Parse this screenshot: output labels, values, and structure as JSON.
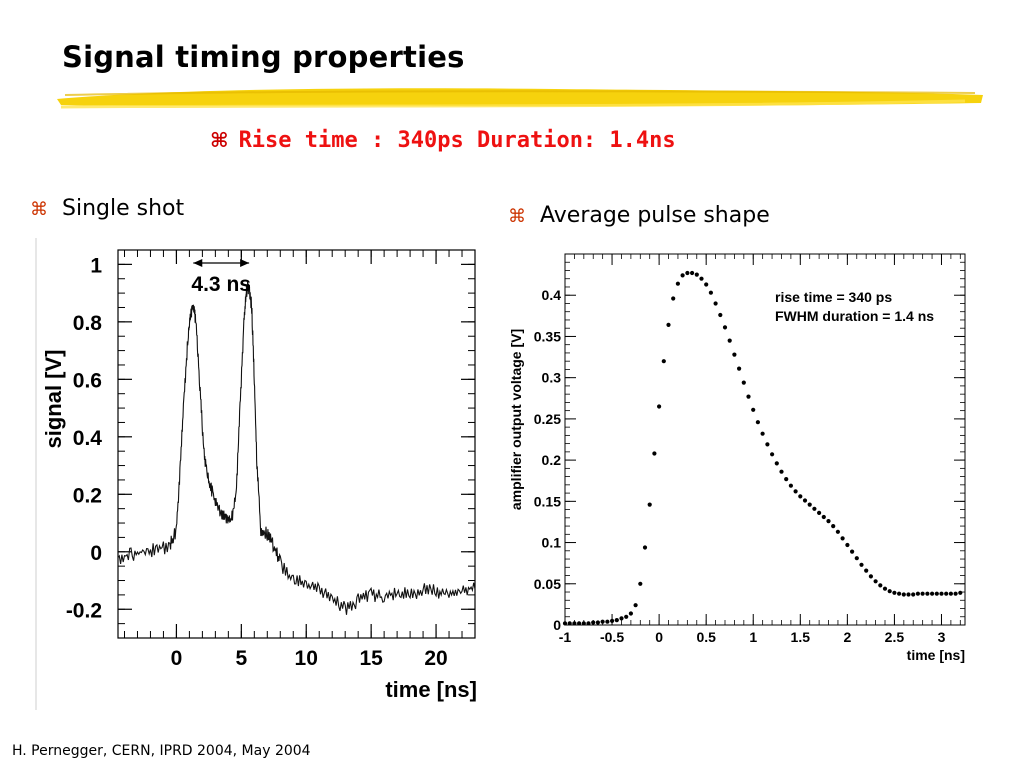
{
  "slide": {
    "title": "Signal timing properties",
    "subtitle": "Rise time : 340ps Duration: 1.4ns",
    "bullet_symbol": "⌘",
    "bullet_left": "Single shot",
    "bullet_right": "Average pulse shape",
    "footer": "H. Pernegger, CERN, IPRD 2004, May 2004",
    "colors": {
      "subtitle": "#ee1111",
      "highlight": "#f5d000",
      "bullet": "#cc3300"
    }
  },
  "chart_data": [
    {
      "type": "line",
      "xlabel": "time [ns]",
      "ylabel": "signal [V]",
      "xlim": [
        -4.5,
        23
      ],
      "ylim": [
        -0.3,
        1.05
      ],
      "xticks": [
        0,
        5,
        10,
        15,
        20
      ],
      "xtick_labels": [
        "0",
        "5",
        "10",
        "15",
        "20"
      ],
      "yticks": [
        -0.2,
        0,
        0.2,
        0.4,
        0.6,
        0.8,
        1
      ],
      "ytick_labels": [
        "-0.2",
        "0",
        "0.2",
        "0.4",
        "0.6",
        "0.8",
        "1"
      ],
      "annotation": "4.3 ns",
      "annotation_span": [
        1.3,
        5.6
      ],
      "x": [
        -4.5,
        -3.5,
        -2.5,
        -1.5,
        -0.5,
        0,
        0.3,
        0.6,
        0.9,
        1.1,
        1.3,
        1.5,
        1.8,
        2.1,
        2.4,
        2.8,
        3.3,
        3.8,
        4.2,
        4.6,
        4.9,
        5.2,
        5.4,
        5.6,
        5.8,
        6.0,
        6.2,
        6.5,
        7.0,
        7.5,
        8.0,
        9.0,
        10,
        11,
        12,
        13,
        14,
        15,
        16,
        17,
        18,
        19,
        20,
        21,
        22,
        23
      ],
      "y": [
        -0.02,
        -0.01,
        0.0,
        0.01,
        0.02,
        0.08,
        0.3,
        0.55,
        0.75,
        0.83,
        0.86,
        0.8,
        0.58,
        0.36,
        0.26,
        0.2,
        0.14,
        0.12,
        0.1,
        0.2,
        0.5,
        0.8,
        0.91,
        0.92,
        0.85,
        0.6,
        0.3,
        0.08,
        0.06,
        0.02,
        -0.04,
        -0.1,
        -0.11,
        -0.13,
        -0.16,
        -0.2,
        -0.17,
        -0.15,
        -0.16,
        -0.14,
        -0.15,
        -0.13,
        -0.14,
        -0.14,
        -0.13,
        -0.13
      ],
      "grid": false
    },
    {
      "type": "scatter",
      "xlabel": "time [ns]",
      "ylabel": "amplifier output voltage [V]",
      "xlim": [
        -1,
        3.25
      ],
      "ylim": [
        0,
        0.45
      ],
      "xticks": [
        -1,
        -0.5,
        0,
        0.5,
        1,
        1.5,
        2,
        2.5,
        3
      ],
      "xtick_labels": [
        "-1",
        "-0.5",
        "0",
        "0.5",
        "1",
        "1.5",
        "2",
        "2.5",
        "3"
      ],
      "yticks": [
        0,
        0.05,
        0.1,
        0.15,
        0.2,
        0.25,
        0.3,
        0.35,
        0.4
      ],
      "ytick_labels": [
        "0",
        "0.05",
        "0.1",
        "0.15",
        "0.2",
        "0.25",
        "0.3",
        "0.35",
        "0.4"
      ],
      "legend_lines": [
        "rise time = 340 ps",
        "FWHM duration = 1.4 ns"
      ],
      "x": [
        -1,
        -0.95,
        -0.9,
        -0.85,
        -0.8,
        -0.75,
        -0.7,
        -0.65,
        -0.6,
        -0.55,
        -0.5,
        -0.45,
        -0.4,
        -0.35,
        -0.3,
        -0.25,
        -0.2,
        -0.15,
        -0.1,
        -0.05,
        0,
        0.05,
        0.1,
        0.15,
        0.2,
        0.25,
        0.3,
        0.35,
        0.4,
        0.45,
        0.5,
        0.55,
        0.6,
        0.65,
        0.7,
        0.75,
        0.8,
        0.85,
        0.9,
        0.95,
        1,
        1.05,
        1.1,
        1.15,
        1.2,
        1.25,
        1.3,
        1.35,
        1.4,
        1.45,
        1.5,
        1.55,
        1.6,
        1.65,
        1.7,
        1.75,
        1.8,
        1.85,
        1.9,
        1.95,
        2,
        2.05,
        2.1,
        2.15,
        2.2,
        2.25,
        2.3,
        2.35,
        2.4,
        2.45,
        2.5,
        2.55,
        2.6,
        2.65,
        2.7,
        2.75,
        2.8,
        2.85,
        2.9,
        2.95,
        3,
        3.05,
        3.1,
        3.15,
        3.2
      ],
      "y": [
        0.002,
        0.002,
        0.002,
        0.002,
        0.002,
        0.002,
        0.003,
        0.003,
        0.004,
        0.004,
        0.005,
        0.006,
        0.008,
        0.01,
        0.014,
        0.024,
        0.05,
        0.094,
        0.146,
        0.208,
        0.265,
        0.32,
        0.364,
        0.396,
        0.414,
        0.424,
        0.427,
        0.427,
        0.425,
        0.42,
        0.413,
        0.403,
        0.39,
        0.376,
        0.361,
        0.345,
        0.328,
        0.311,
        0.294,
        0.277,
        0.261,
        0.246,
        0.232,
        0.219,
        0.207,
        0.196,
        0.186,
        0.177,
        0.169,
        0.162,
        0.156,
        0.151,
        0.146,
        0.141,
        0.136,
        0.131,
        0.126,
        0.12,
        0.113,
        0.105,
        0.097,
        0.089,
        0.081,
        0.073,
        0.066,
        0.059,
        0.053,
        0.048,
        0.044,
        0.041,
        0.039,
        0.038,
        0.037,
        0.037,
        0.037,
        0.038,
        0.038,
        0.038,
        0.038,
        0.038,
        0.038,
        0.038,
        0.038,
        0.038,
        0.039
      ],
      "grid": false
    }
  ]
}
